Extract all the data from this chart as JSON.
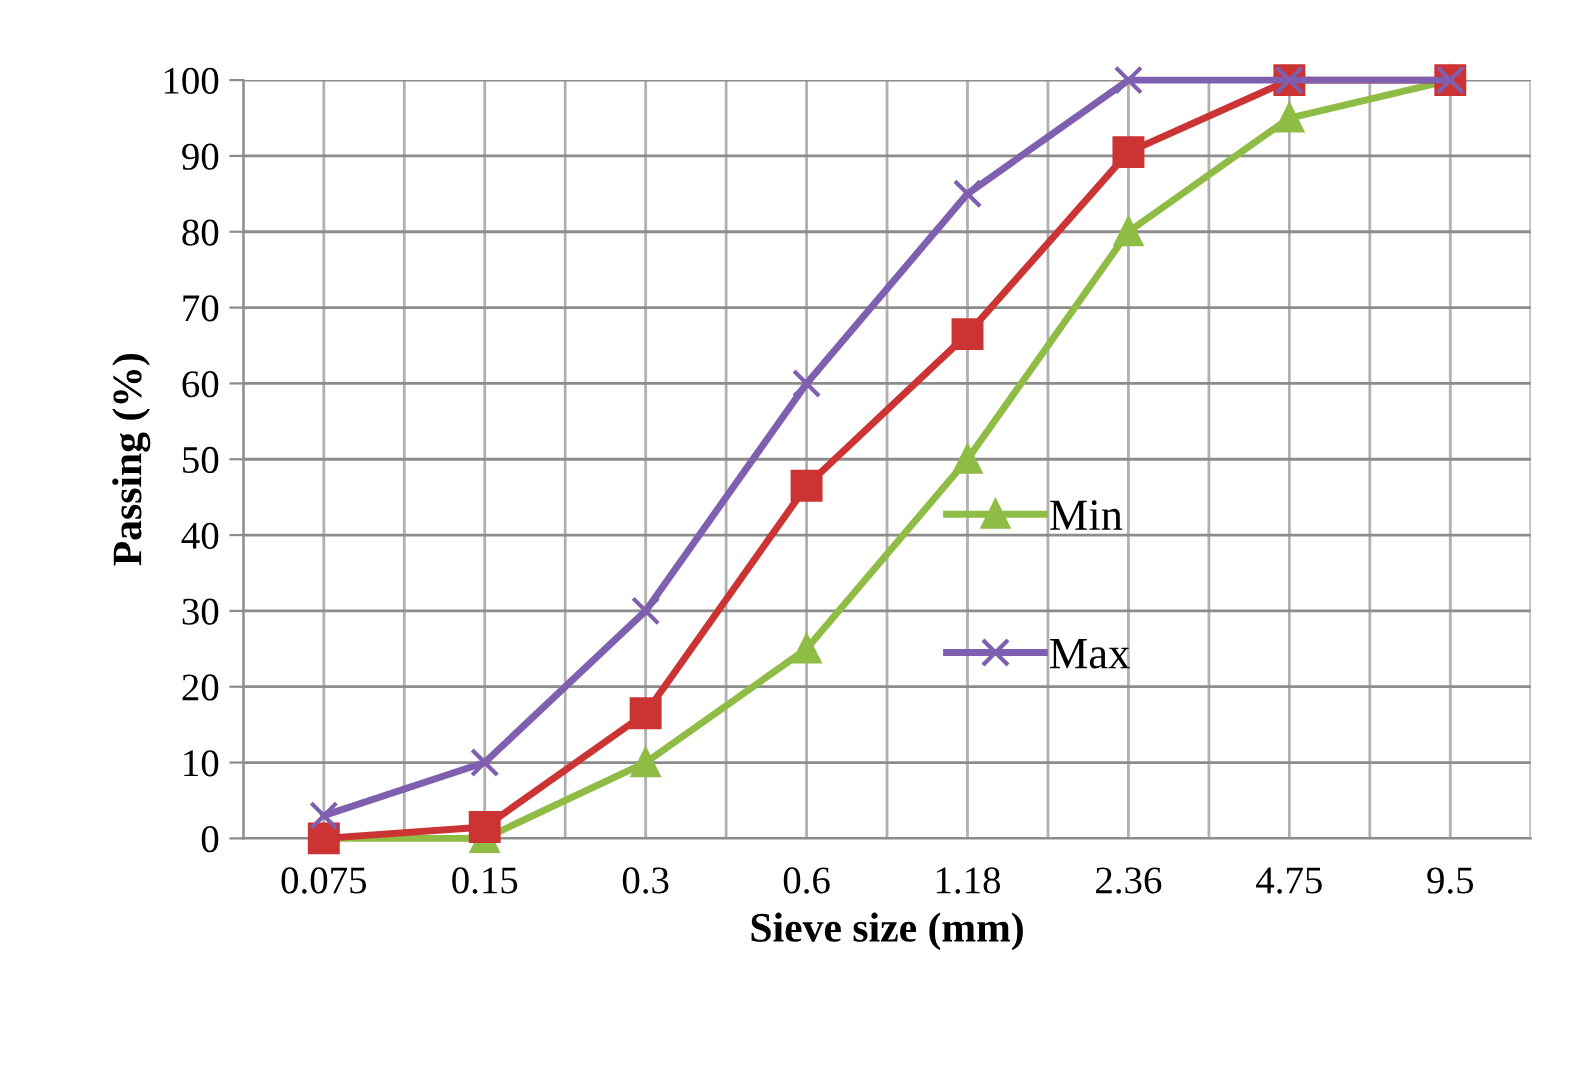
{
  "chart_data": {
    "type": "line",
    "xlabel": "Sieve size (mm)",
    "ylabel": "Passing (%)",
    "categories": [
      "0.075",
      "0.15",
      "0.3",
      "0.6",
      "1.18",
      "2.36",
      "4.75",
      "9.5"
    ],
    "series": [
      {
        "name": "Min",
        "color": "#8fbc45",
        "marker": "triangle",
        "values": [
          0,
          0,
          10,
          25,
          50,
          80,
          95,
          100
        ]
      },
      {
        "color": "#cc3333",
        "marker": "square",
        "values": [
          0,
          1.5,
          16.5,
          46.5,
          66.5,
          90.5,
          100,
          100
        ]
      },
      {
        "name": "Max",
        "color": "#7e5fb0",
        "marker": "cross",
        "values": [
          3,
          10,
          30,
          60,
          85,
          100,
          100,
          100
        ]
      }
    ],
    "ylim": [
      0,
      100
    ],
    "yticks": [
      0,
      10,
      20,
      30,
      40,
      50,
      60,
      70,
      80,
      90,
      100
    ],
    "grid": true,
    "legend": "right",
    "line_style": "solid"
  }
}
